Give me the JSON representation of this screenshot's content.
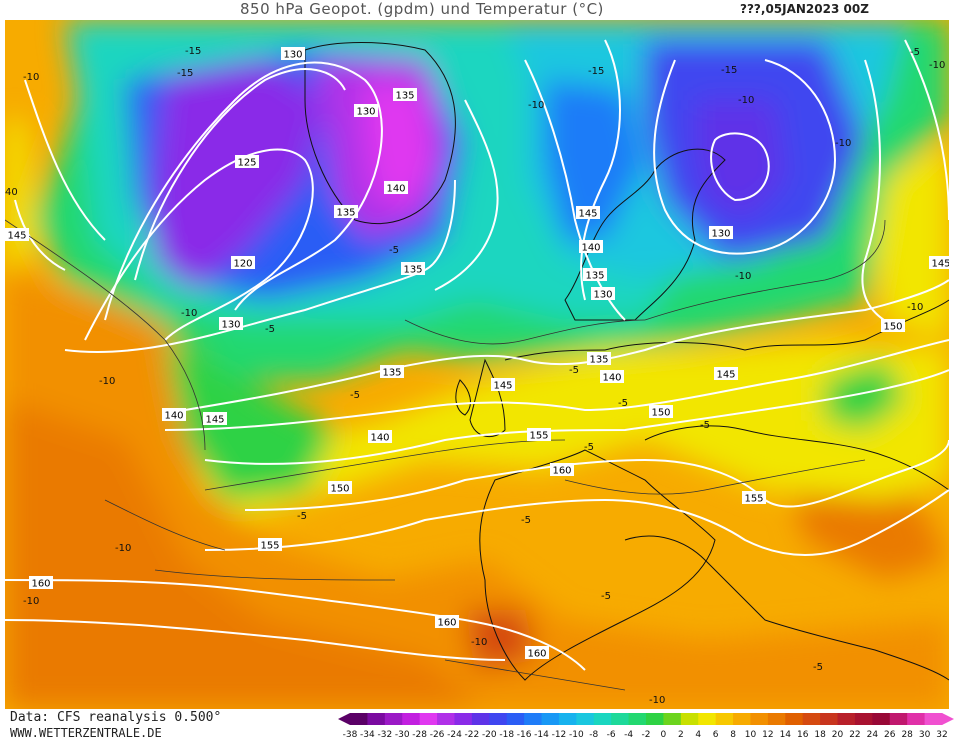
{
  "title": "850 hPa Geopot. (gpdm) und Temperatur (°C)",
  "date": "???,05JAN2023 00Z",
  "footer": {
    "source": "Data: CFS reanalysis 0.500°",
    "site": "WWW.WETTERZENTRALE.DE"
  },
  "colorbar": {
    "ticks": [
      "-38",
      "-34",
      "-32",
      "-30",
      "-28",
      "-26",
      "-24",
      "-22",
      "-20",
      "-18",
      "-16",
      "-14",
      "-12",
      "-10",
      "-8",
      "-6",
      "-4",
      "-2",
      "0",
      "2",
      "4",
      "6",
      "8",
      "10",
      "12",
      "14",
      "16",
      "18",
      "20",
      "22",
      "24",
      "26",
      "28",
      "30",
      "32"
    ],
    "colors": [
      "#5a0066",
      "#7a0aa0",
      "#9b19c6",
      "#c21fe0",
      "#e038f0",
      "#b030e8",
      "#8a2be8",
      "#5e33e8",
      "#3f46f0",
      "#2b5df5",
      "#1f7cf8",
      "#1898f5",
      "#17b2ee",
      "#1ac7df",
      "#1ad6c0",
      "#1dd99a",
      "#22d870",
      "#2ed244",
      "#6cd41e",
      "#c8e000",
      "#f2e600",
      "#f7c800",
      "#f7ab00",
      "#f29000",
      "#ea7a00",
      "#e06000",
      "#d54a10",
      "#c8351e",
      "#b8202a",
      "#a81230",
      "#980836",
      "#c0186e",
      "#e030a8",
      "#f050d0"
    ]
  },
  "labels": {
    "geo": [
      "130",
      "130",
      "135",
      "125",
      "120",
      "130",
      "140",
      "135",
      "135",
      "135",
      "145",
      "140",
      "135",
      "130",
      "130",
      "145",
      "145",
      "140",
      "140",
      "145",
      "135",
      "150",
      "145",
      "140",
      "155",
      "160",
      "150",
      "155",
      "160",
      "160",
      "155",
      "150",
      "145",
      "140"
    ],
    "temp": [
      "-15",
      "-15",
      "-10",
      "-10",
      "-5",
      "-5",
      "-5",
      "-15",
      "-10",
      "-10",
      "-15",
      "-10",
      "-10",
      "-5",
      "-5",
      "-10",
      "-5",
      "-5",
      "-5",
      "-10",
      "-10",
      "-10",
      "-5",
      "-5",
      "-10",
      "-10",
      "-5",
      "-10",
      "-5",
      "-10",
      "-10",
      "-5",
      "-5",
      "-5",
      "-5",
      "40",
      "-15",
      "-10",
      "-5"
    ]
  }
}
